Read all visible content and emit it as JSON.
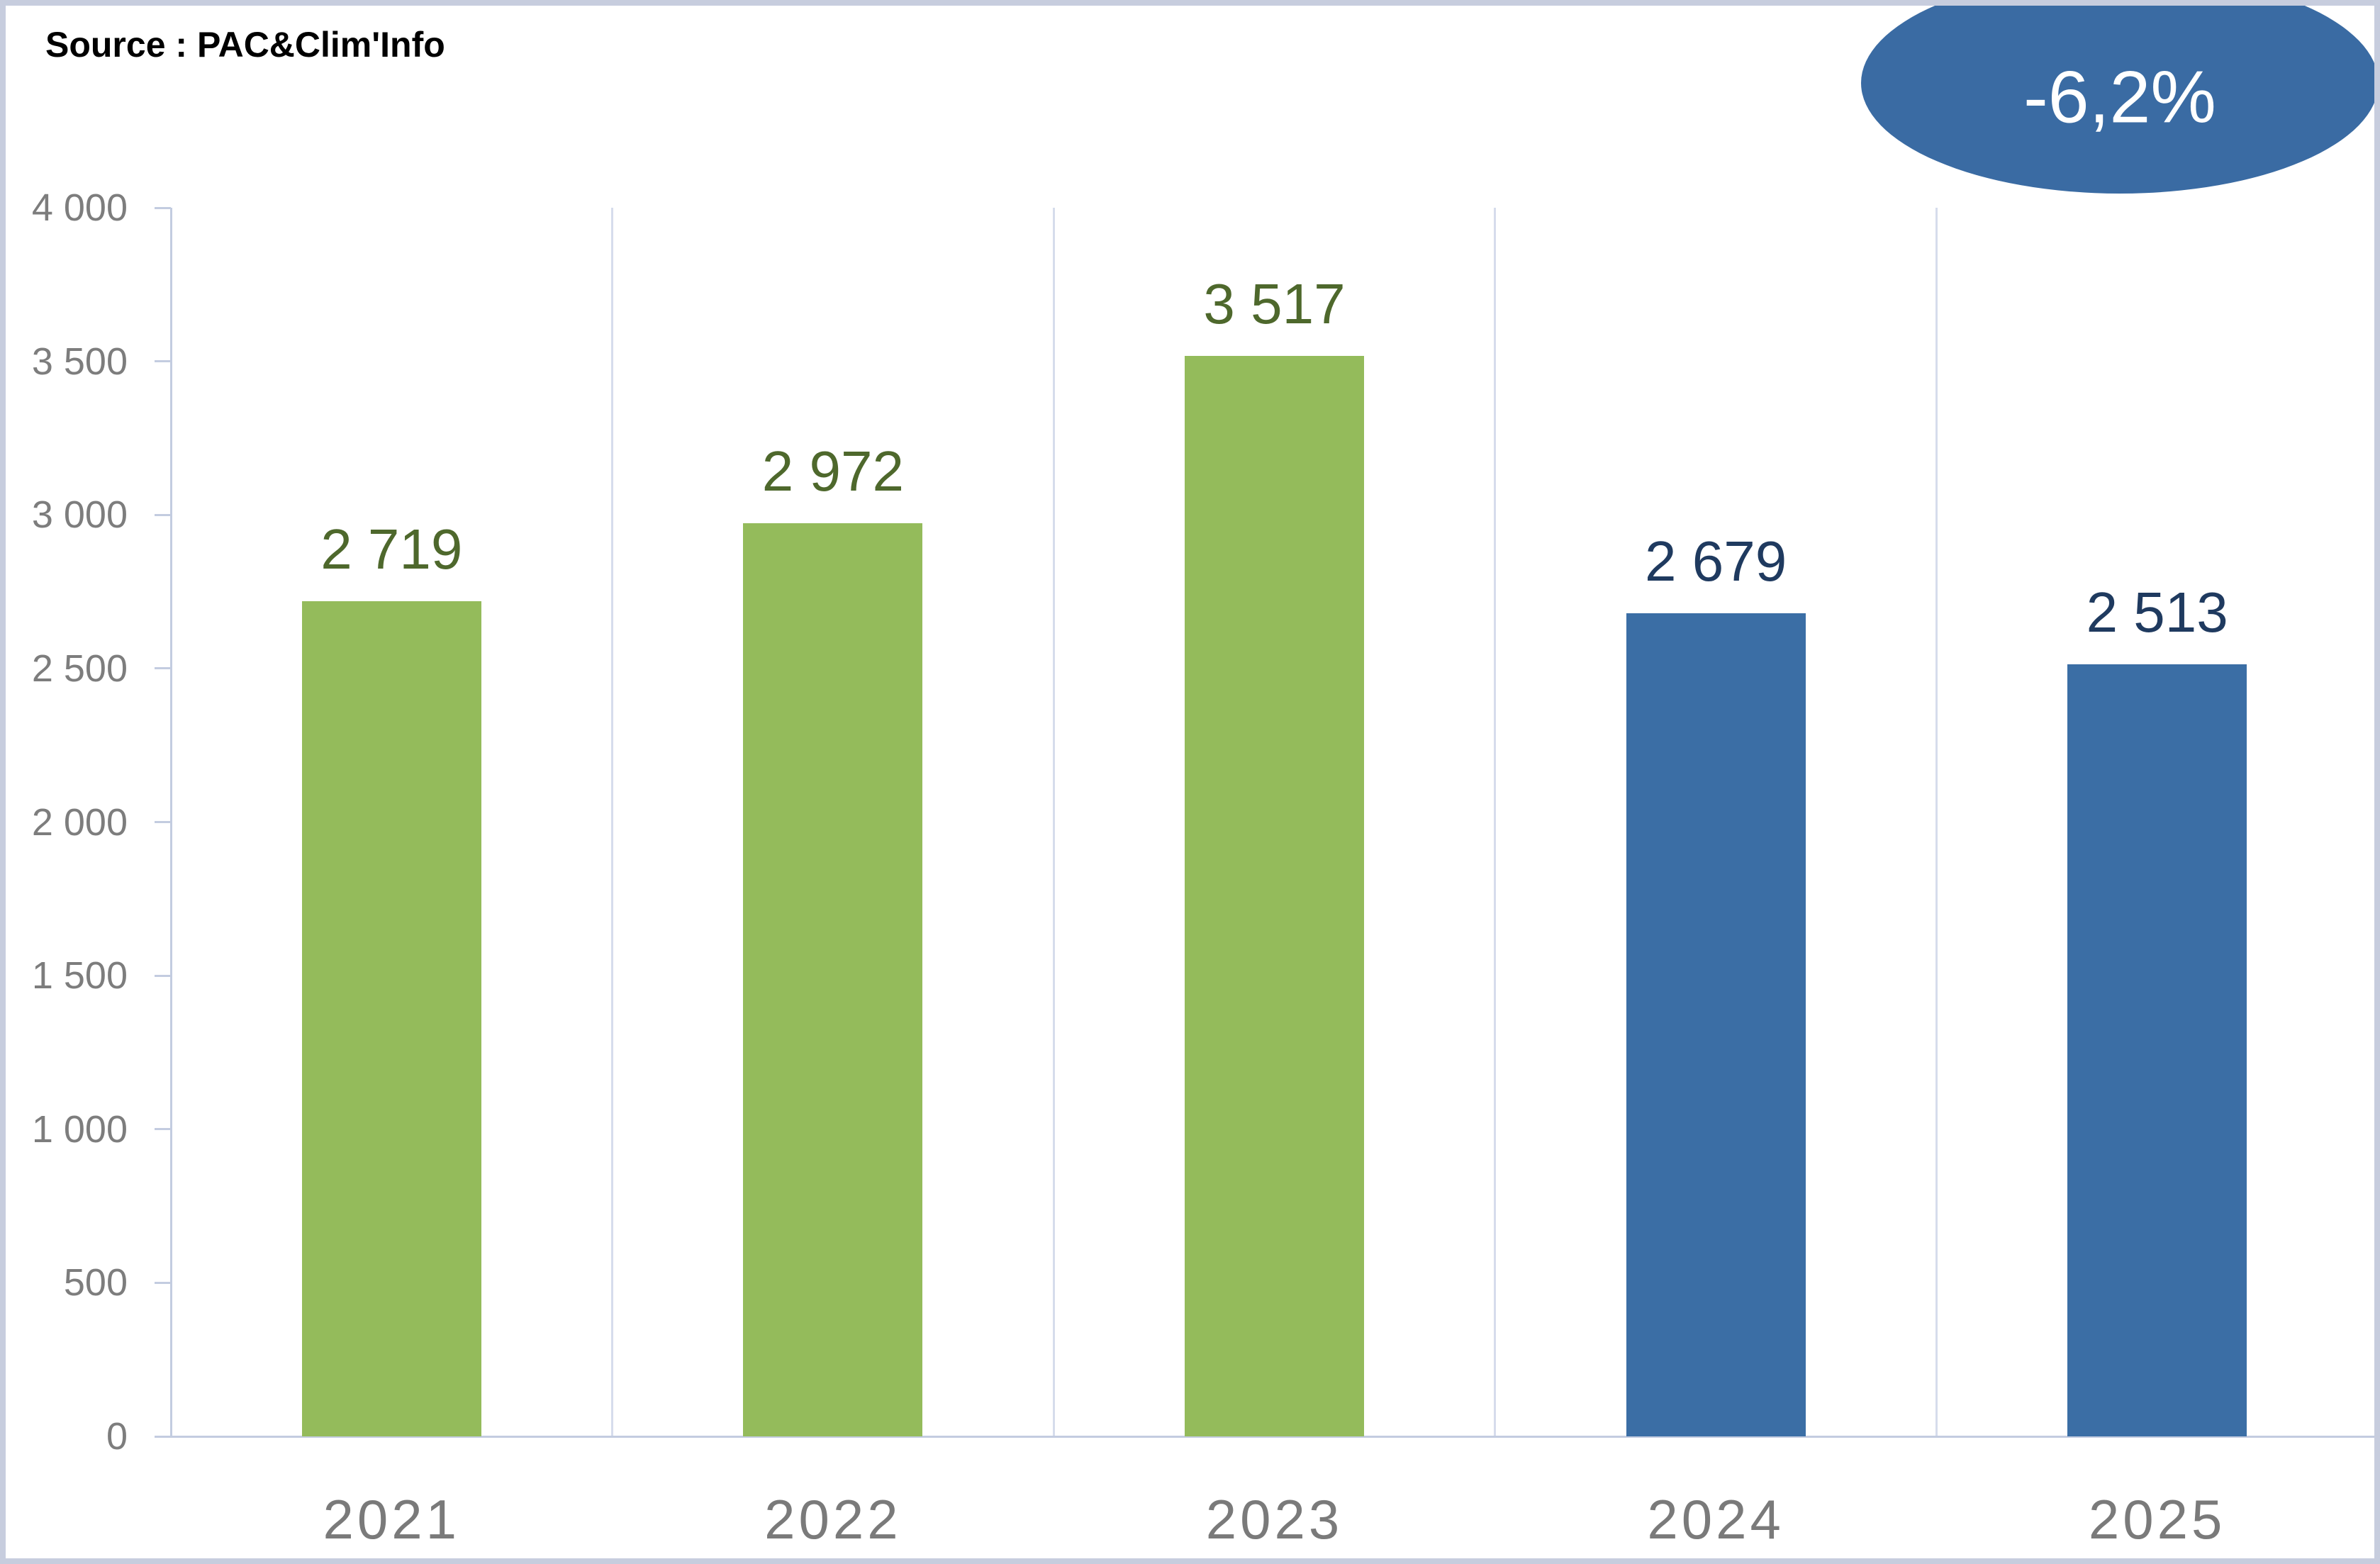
{
  "source": {
    "label": "Source : PAC&Clim'Info"
  },
  "badge": {
    "label": "-6,2%",
    "bg_color": "#3a6ba3",
    "text_color": "#ffffff"
  },
  "chart_data": {
    "type": "bar",
    "title": "",
    "xlabel": "",
    "ylabel": "",
    "categories": [
      "2021",
      "2022",
      "2023",
      "2024",
      "2025"
    ],
    "values": [
      2719,
      2972,
      3517,
      2679,
      2513
    ],
    "value_labels": [
      "2 719",
      "2 972",
      "3 517",
      "2 679",
      "2 513"
    ],
    "bar_colors": [
      "#94bb5b",
      "#94bb5b",
      "#94bb5b",
      "#3b6ea5",
      "#3b6ea5"
    ],
    "value_label_colors": [
      "#4e682c",
      "#4e682c",
      "#4e682c",
      "#1f3a5f",
      "#1f3a5f"
    ],
    "y_tick_labels": [
      "4 000",
      "3 500",
      "3 000",
      "2 500",
      "2 000",
      "1 500",
      "1 000",
      "500",
      "0"
    ],
    "y_tick_values": [
      4000,
      3500,
      3000,
      2500,
      2000,
      1500,
      1000,
      500,
      0
    ],
    "ylim": [
      0,
      4000
    ],
    "grid": "vertical-only",
    "legend": "none"
  },
  "colors": {
    "gridline": "#d6dcec",
    "axis_line": "#c3cce0",
    "tick_text": "#7d7d7d",
    "frame_border": "#c7cdde",
    "background": "#ffffff"
  }
}
